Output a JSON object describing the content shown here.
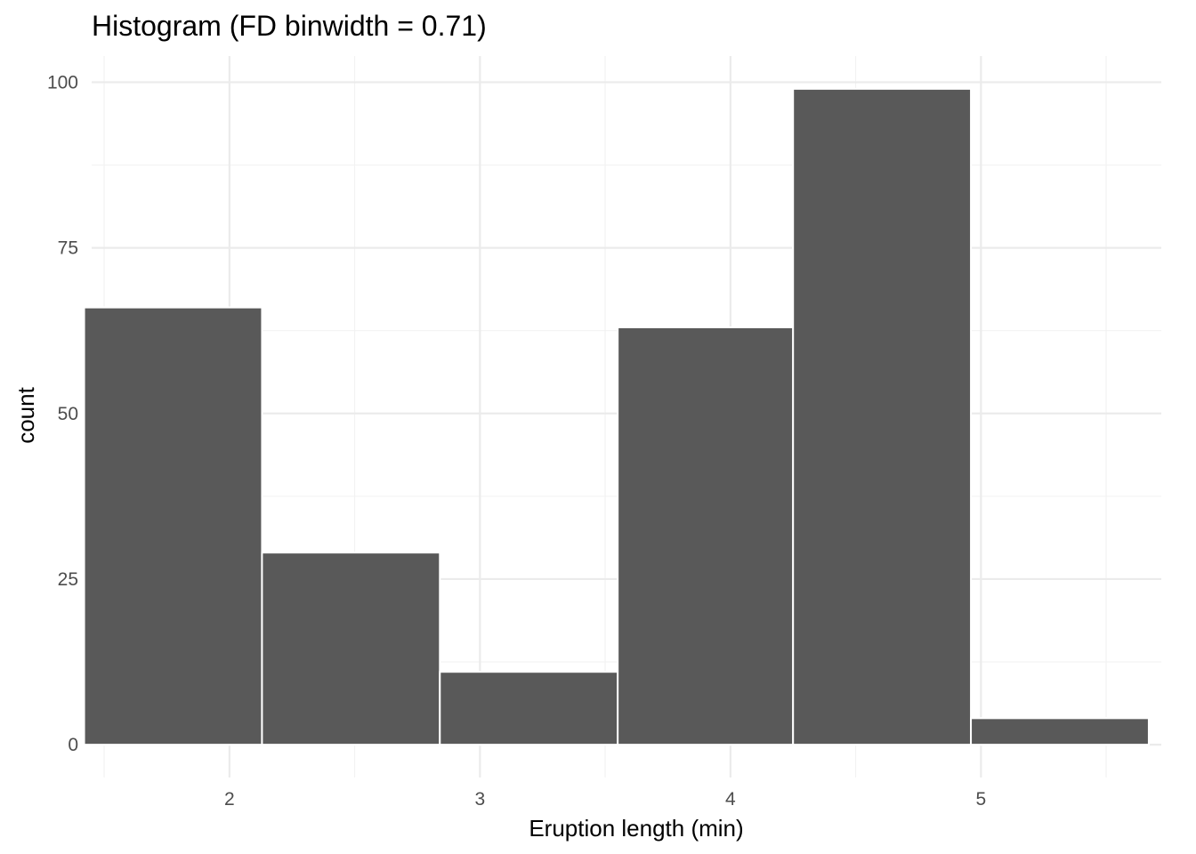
{
  "chart_data": {
    "type": "bar",
    "title": "Histogram (FD binwidth = 0.71)",
    "xlabel": "Eruption length (min)",
    "ylabel": "count",
    "grid": true,
    "legend": "none",
    "xlim": [
      1.45,
      5.72
    ],
    "ylim": [
      -4.95,
      103.95
    ],
    "x_ticks": [
      2,
      3,
      4,
      5
    ],
    "y_ticks": [
      0,
      25,
      50,
      75,
      100
    ],
    "x_tick_labels": [
      "2",
      "3",
      "4",
      "5"
    ],
    "y_tick_labels": [
      "0",
      "25",
      "50",
      "75",
      "100"
    ],
    "binwidth": 0.71,
    "bins": [
      {
        "x_start": 1.42,
        "x_end": 2.13,
        "count": 66
      },
      {
        "x_start": 2.13,
        "x_end": 2.84,
        "count": 29
      },
      {
        "x_start": 2.84,
        "x_end": 3.55,
        "count": 11
      },
      {
        "x_start": 3.55,
        "x_end": 4.25,
        "count": 63
      },
      {
        "x_start": 4.25,
        "x_end": 4.96,
        "count": 99
      },
      {
        "x_start": 4.96,
        "x_end": 5.67,
        "count": 4
      }
    ],
    "colors": {
      "bar_fill": "#595959",
      "bar_outline": "#ffffff",
      "grid": "#ebebeb",
      "tick_text": "#4d4d4d"
    }
  }
}
